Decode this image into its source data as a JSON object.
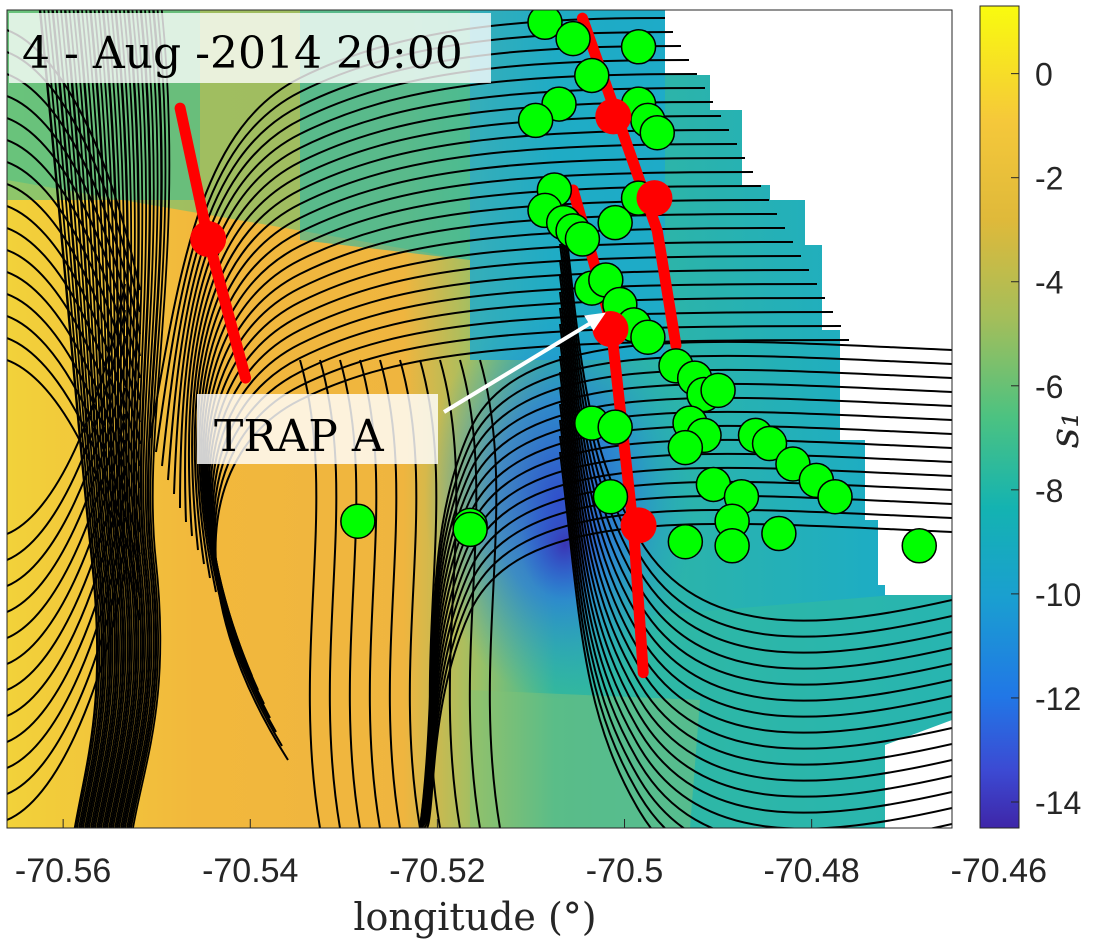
{
  "chart_data": {
    "type": "heatmap",
    "title": "4 - Aug -2014 20:00",
    "xlabel": "longitude (°)",
    "ylabel": "",
    "xlim": [
      -70.566,
      -70.465
    ],
    "ylim": [
      0,
      1
    ],
    "x_ticks": [
      -70.56,
      -70.54,
      -70.52,
      -70.5,
      -70.48,
      -70.46
    ],
    "x_tick_labels": [
      "-70.56",
      "-70.54",
      "-70.52",
      "-70.5",
      "-70.48",
      "-70.46"
    ],
    "colorbar": {
      "label": "s₁",
      "range": [
        -14.5,
        1.3
      ],
      "ticks": [
        0,
        -2,
        -4,
        -6,
        -8,
        -10,
        -12,
        -14
      ],
      "tick_labels": [
        "0",
        "-2",
        "-4",
        "-6",
        "-8",
        "-10",
        "-12",
        "-14"
      ]
    },
    "annotations": [
      {
        "text": "TRAP A",
        "arrow_to": [
          -70.502,
          0.63
        ]
      }
    ],
    "series": [
      {
        "name": "attracting curves",
        "type": "line",
        "color": "#ff0000",
        "curves": [
          [
            [
              -70.5475,
              0.88
            ],
            [
              -70.5445,
              0.72
            ],
            [
              -70.5405,
              0.55
            ]
          ],
          [
            [
              -70.5045,
              0.99
            ],
            [
              -70.5008,
              0.87
            ],
            [
              -70.4965,
              0.73
            ],
            [
              -70.4945,
              0.59
            ]
          ],
          [
            [
              -70.5055,
              0.78
            ],
            [
              -70.5015,
              0.62
            ],
            [
              -70.499,
              0.36
            ],
            [
              -70.498,
              0.19
            ]
          ]
        ]
      },
      {
        "name": "attracting curve points",
        "type": "scatter",
        "color": "#ff0000",
        "x": [
          -70.5445,
          -70.5012,
          -70.4968,
          -70.5015,
          -70.4985
        ],
        "y": [
          0.72,
          0.87,
          0.77,
          0.61,
          0.37
        ]
      },
      {
        "name": "drifters",
        "type": "scatter",
        "color": "#00ff00",
        "x": [
          -70.5085,
          -70.5055,
          -70.4985,
          -70.5035,
          -70.4985,
          -70.4975,
          -70.507,
          -70.5095,
          -70.4965,
          -70.5075,
          -70.4985,
          -70.5085,
          -70.5065,
          -70.5055,
          -70.5045,
          -70.501,
          -70.5035,
          -70.502,
          -70.5005,
          -70.499,
          -70.4975,
          -70.4945,
          -70.4925,
          -70.4915,
          -70.49,
          -70.493,
          -70.4915,
          -70.5035,
          -70.501,
          -70.4935,
          -70.486,
          -70.4845,
          -70.482,
          -70.4795,
          -70.4775,
          -70.4905,
          -70.4875,
          -70.4885,
          -70.5015,
          -70.4935,
          -70.4885,
          -70.4835,
          -70.4685,
          -70.5285,
          -70.5165,
          -70.5165
        ],
        "y": [
          0.985,
          0.965,
          0.955,
          0.92,
          0.885,
          0.865,
          0.885,
          0.865,
          0.85,
          0.78,
          0.77,
          0.755,
          0.74,
          0.73,
          0.72,
          0.74,
          0.66,
          0.67,
          0.64,
          0.615,
          0.6,
          0.565,
          0.55,
          0.53,
          0.535,
          0.495,
          0.48,
          0.495,
          0.49,
          0.465,
          0.48,
          0.47,
          0.445,
          0.425,
          0.405,
          0.42,
          0.405,
          0.375,
          0.405,
          0.35,
          0.345,
          0.36,
          0.345,
          0.375,
          0.37,
          0.365
        ]
      }
    ]
  }
}
